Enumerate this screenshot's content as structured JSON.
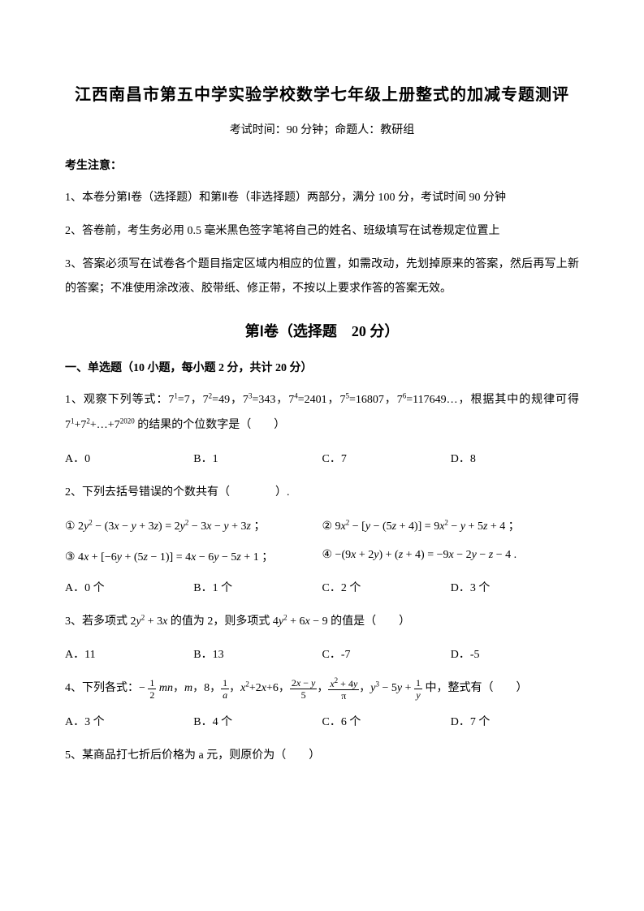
{
  "title": "江西南昌市第五中学实验学校数学七年级上册整式的加减专题测评",
  "subtitle": "考试时间：90 分钟；命题人：教研组",
  "notice_heading": "考生注意：",
  "notices": [
    "1、本卷分第Ⅰ卷（选择题）和第Ⅱ卷（非选择题）两部分，满分 100 分，考试时间 90 分钟",
    "2、答卷前，考生务必用 0.5 毫米黑色签字笔将自己的姓名、班级填写在试卷规定位置上",
    "3、答案必须写在试卷各个题目指定区域内相应的位置，如需改动，先划掉原来的答案，然后再写上新的答案；不准使用涂改液、胶带纸、修正带，不按以上要求作答的答案无效。"
  ],
  "section_title": "第Ⅰ卷（选择题　20 分）",
  "subsection_title": "一、单选题（10 小题，每小题 2 分，共计 20 分）",
  "q1": {
    "text_prefix": "1、观察下列等式：7",
    "powers": "¹=7，7²=49，7³=343，7⁴=2401，7⁵=16807，7⁶=117649…，根据其中的规律可得 7¹+7²+…+7²⁰²⁰ 的结果的个位数字是（　　）",
    "options": {
      "a": "A．0",
      "b": "B．1",
      "c": "C．7",
      "d": "D．8"
    }
  },
  "q2": {
    "text": "2、下列去括号错误的个数共有（　　　　）.",
    "eq1": "① 2y² − (3x − y + 3z) = 2y² − 3x − y + 3z ；",
    "eq2": "② 9x² − [y − (5z + 4)] = 9x² − y + 5z + 4 ；",
    "eq3": "③ 4x + [−6y + (5z − 1)] = 4x − 6y − 5z + 1 ；",
    "eq4": "④ −(9x + 2y) + (z + 4) = −9x − 2y − z − 4 .",
    "options": {
      "a": "A．0 个",
      "b": "B．1 个",
      "c": "C．2 个",
      "d": "D．3 个"
    }
  },
  "q3": {
    "text": "3、若多项式 2y² + 3x 的值为 2，则多项式 4y² + 6x − 9 的值是（　　）",
    "options": {
      "a": "A．11",
      "b": "B．13",
      "c": "C．-7",
      "d": "D．-5"
    }
  },
  "q4": {
    "text_prefix": "4、下列各式：",
    "text_suffix": "中，整式有（　　）",
    "options": {
      "a": "A．3 个",
      "b": "B．4 个",
      "c": "C．6 个",
      "d": "D．7 个"
    }
  },
  "q5": {
    "text": "5、某商品打七折后价格为 a 元，则原价为（　　）"
  },
  "colors": {
    "text": "#000000",
    "background": "#ffffff"
  },
  "fonts": {
    "body_size": 14,
    "title_size": 20,
    "section_size": 18
  }
}
